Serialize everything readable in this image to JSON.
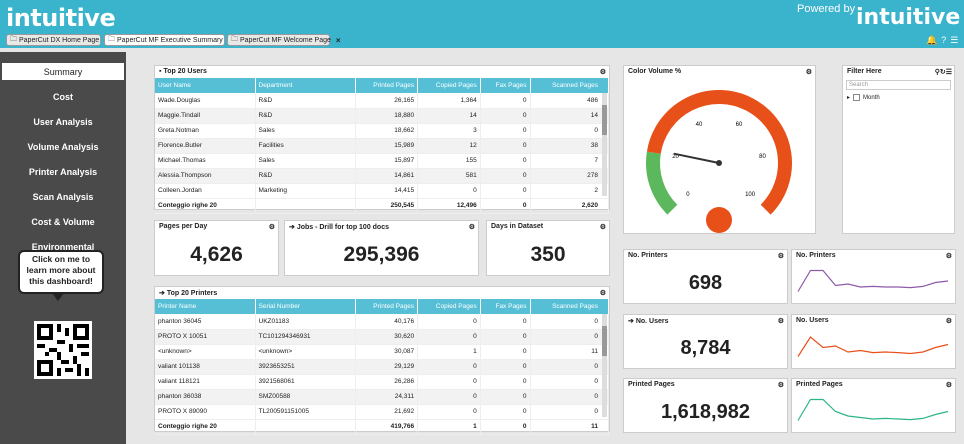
{
  "brand": {
    "logo": "intuitive",
    "powered_by": "Powered by",
    "logo2": "intuitive"
  },
  "tabs": [
    {
      "label": "PaperCut DX Home Page"
    },
    {
      "label": "PaperCut MF Executive Summary"
    },
    {
      "label": "PaperCut MF Welcome Page"
    }
  ],
  "sidebar": {
    "items": [
      "Summary",
      "Cost",
      "User Analysis",
      "Volume Analysis",
      "Printer Analysis",
      "Scan Analysis",
      "Cost & Volume",
      "Environmental"
    ],
    "callout": "Click on me to learn more about this dashboard!"
  },
  "top_users": {
    "title": "Top 20 Users",
    "columns": [
      "User Name",
      "Department",
      "Printed Pages",
      "Copied Pages",
      "Fax Pages",
      "Scanned Pages"
    ],
    "rows": [
      [
        "Wade.Douglas",
        "R&D",
        "26,165",
        "1,364",
        "0",
        "486"
      ],
      [
        "Maggie.Tindall",
        "R&D",
        "18,880",
        "14",
        "0",
        "14"
      ],
      [
        "Greta.Notman",
        "Sales",
        "18,662",
        "3",
        "0",
        "0"
      ],
      [
        "Florence.Butler",
        "Facilities",
        "15,989",
        "12",
        "0",
        "38"
      ],
      [
        "Michael.Thomas",
        "Sales",
        "15,897",
        "155",
        "0",
        "7"
      ],
      [
        "Alessia.Thompson",
        "R&D",
        "14,861",
        "581",
        "0",
        "278"
      ],
      [
        "Colleen.Jordan",
        "Marketing",
        "14,415",
        "0",
        "0",
        "2"
      ]
    ],
    "footer": [
      "Conteggio righe 20",
      "",
      "250,545",
      "12,496",
      "0",
      "2,620"
    ]
  },
  "pages_per_day": {
    "title": "Pages per Day",
    "value": "4,626"
  },
  "jobs_drill": {
    "title": "Jobs - Drill for top 100 docs",
    "value": "295,396"
  },
  "days_dataset": {
    "title": "Days in Dataset",
    "value": "350"
  },
  "top_printers": {
    "title": "Top 20 Printers",
    "columns": [
      "Printer Name",
      "Serial Number",
      "Printed Pages",
      "Copied Pages",
      "Fax Pages",
      "Scanned Pages"
    ],
    "rows": [
      [
        "phanton 36045",
        "UKZ01183",
        "40,176",
        "0",
        "0",
        "0"
      ],
      [
        "PROTO X 10051",
        "TC101294346931",
        "30,620",
        "0",
        "0",
        "0"
      ],
      [
        "<unknown>",
        "<unknown>",
        "30,087",
        "1",
        "0",
        "11"
      ],
      [
        "valiant 101138",
        "3923653251",
        "29,129",
        "0",
        "0",
        "0"
      ],
      [
        "valiant 118121",
        "3921568061",
        "26,286",
        "0",
        "0",
        "0"
      ],
      [
        "phanton 36038",
        "SMZ00588",
        "24,311",
        "0",
        "0",
        "0"
      ],
      [
        "PROTO X 89090",
        "TL200591151005",
        "21,692",
        "0",
        "0",
        "0"
      ]
    ],
    "footer": [
      "Conteggio righe 20",
      "",
      "419,766",
      "1",
      "0",
      "11"
    ]
  },
  "gauge": {
    "title": "Color Volume %",
    "ticks": [
      "0",
      "20",
      "40",
      "60",
      "80",
      "100"
    ],
    "value": 21,
    "colors": {
      "green": "#5cb85c",
      "red": "#e8501a",
      "needle": "#333"
    }
  },
  "filter": {
    "title": "Filter Here",
    "search_placeholder": "Search",
    "tree_item": "Month"
  },
  "kpis": [
    {
      "title": "No. Printers",
      "value": "698",
      "trend_title": "No. Printers",
      "trend_color": "#8e5aa8",
      "trend": [
        0.15,
        0.85,
        0.85,
        0.35,
        0.4,
        0.3,
        0.32,
        0.3,
        0.3,
        0.28,
        0.32,
        0.45,
        0.5
      ]
    },
    {
      "title": "No. Users",
      "value": "8,784",
      "trend_title": "No. Users",
      "trend_color": "#e8501a",
      "trend": [
        0.15,
        0.8,
        0.45,
        0.5,
        0.3,
        0.35,
        0.28,
        0.3,
        0.28,
        0.25,
        0.3,
        0.45,
        0.55
      ]
    },
    {
      "title": "Printed Pages",
      "value": "1,618,982",
      "trend_title": "Printed Pages",
      "trend_color": "#2bb58c",
      "trend": [
        0.15,
        0.85,
        0.85,
        0.45,
        0.3,
        0.25,
        0.2,
        0.22,
        0.2,
        0.18,
        0.22,
        0.35,
        0.45
      ]
    }
  ]
}
